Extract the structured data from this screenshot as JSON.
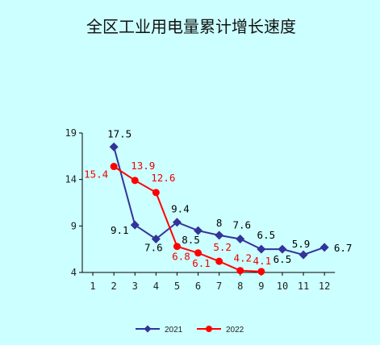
{
  "chart_data": {
    "type": "line",
    "title": "全区工业用电量累计增长速度",
    "xlabel": "",
    "ylabel": "",
    "x": [
      1,
      2,
      3,
      4,
      5,
      6,
      7,
      8,
      9,
      10,
      11,
      12
    ],
    "x_tick_labels": [
      "1",
      "2",
      "3",
      "4",
      "5",
      "6",
      "7",
      "8",
      "9",
      "10",
      "11",
      "12"
    ],
    "y_ticks": [
      4,
      9,
      14,
      19
    ],
    "ylim": [
      4,
      19
    ],
    "grid": false,
    "legend_position": "bottom",
    "series": [
      {
        "name": "2021",
        "color": "#333399",
        "marker": "diamond",
        "x": [
          2,
          3,
          4,
          5,
          6,
          7,
          8,
          9,
          10,
          11,
          12
        ],
        "values": [
          17.5,
          9.1,
          7.6,
          9.4,
          8.5,
          8,
          7.6,
          6.5,
          6.5,
          5.9,
          6.7
        ],
        "labels": [
          "17.5",
          "9.1",
          "7.6",
          "9.4",
          "8.5",
          "8",
          "7.6",
          "6.5",
          "6.5",
          "5.9",
          "6.7"
        ]
      },
      {
        "name": "2022",
        "color": "#ff0000",
        "marker": "circle",
        "x": [
          2,
          3,
          4,
          5,
          6,
          7,
          8,
          9
        ],
        "values": [
          15.4,
          13.9,
          12.6,
          6.8,
          6.1,
          5.2,
          4.2,
          4.1
        ],
        "labels": [
          "15.4",
          "13.9",
          "12.6",
          "6.8",
          "6.1",
          "5.2",
          "4.2",
          "4.1"
        ]
      }
    ]
  }
}
